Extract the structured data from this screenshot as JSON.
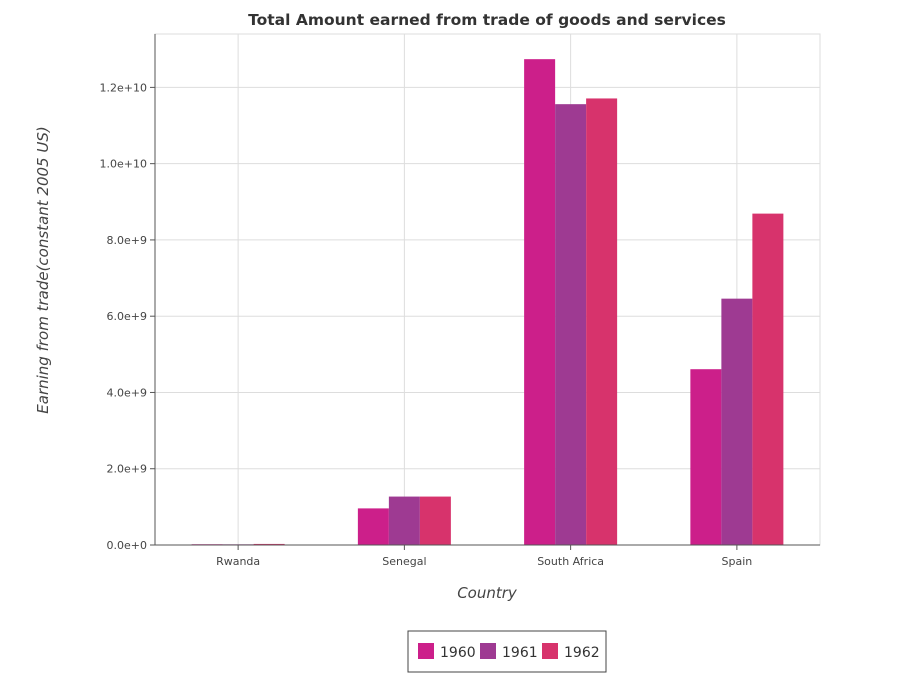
{
  "chart_data": {
    "type": "bar",
    "title": "Total Amount earned from trade of goods and services",
    "xlabel": "Country",
    "ylabel": "Earning from trade(constant 2005 US)",
    "categories": [
      "Rwanda",
      "Senegal",
      "South Africa",
      "Spain"
    ],
    "series": [
      {
        "name": "1960",
        "color": "#cc1f8a",
        "values": [
          20000000,
          960000000,
          12740000000,
          4610000000
        ]
      },
      {
        "name": "1961",
        "color": "#9e3a92",
        "values": [
          18000000,
          1270000000,
          11560000000,
          6460000000
        ]
      },
      {
        "name": "1962",
        "color": "#d7336c",
        "values": [
          28000000,
          1270000000,
          11710000000,
          8690000000
        ]
      }
    ],
    "ylim": [
      0,
      13400000000
    ],
    "yticks": [
      0,
      2000000000,
      4000000000,
      6000000000,
      8000000000,
      10000000000,
      12000000000
    ],
    "ytick_labels": [
      "0.0e+0",
      "2.0e+9",
      "4.0e+9",
      "6.0e+9",
      "8.0e+9",
      "1.0e+10",
      "1.2e+10"
    ],
    "grid": true,
    "legend_position": "bottom-center"
  }
}
